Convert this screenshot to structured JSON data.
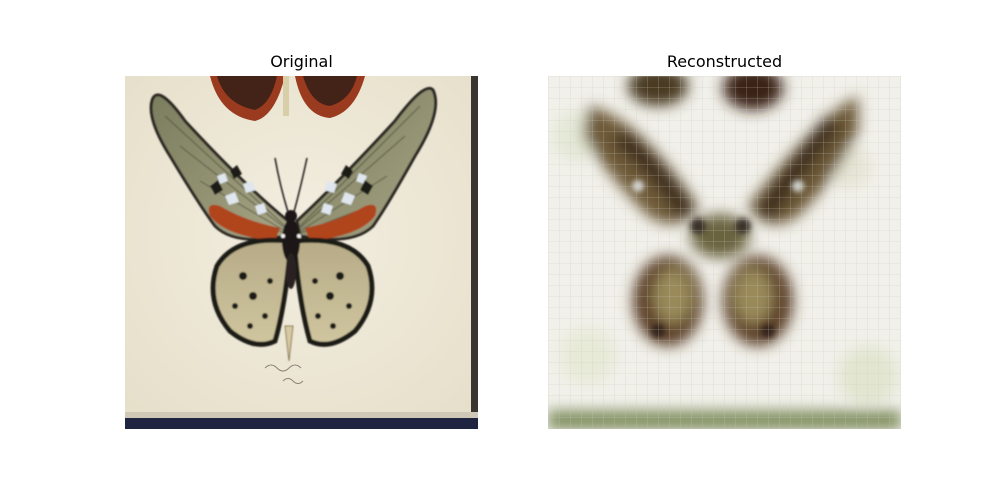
{
  "panels": {
    "original": {
      "title": "Original",
      "image": "butterfly-specimen"
    },
    "reconstructed": {
      "title": "Reconstructed",
      "image": "blurry-butterfly-reconstruction"
    }
  },
  "colors": {
    "background": "#ffffff",
    "paper": "#efe9d9",
    "wing_olive": "#8a8a6a",
    "wing_red": "#b0441e",
    "wing_black": "#1e1a18",
    "frame_bottom": "#1f2440"
  }
}
